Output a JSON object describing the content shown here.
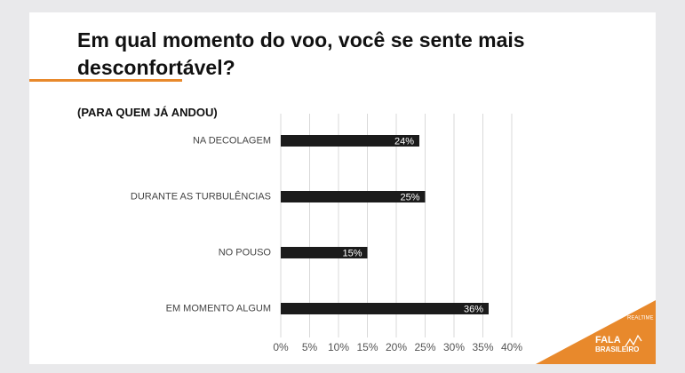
{
  "chart_data": {
    "type": "hbar",
    "title": "Em qual momento do voo, você se sente mais desconfortável?",
    "subtitle": "(PARA QUEM JÁ ANDOU)",
    "categories": [
      "NA DECOLAGEM",
      "DURANTE AS TURBULÊNCIAS",
      "NO POUSO",
      "EM MOMENTO ALGUM"
    ],
    "values": [
      24,
      25,
      15,
      36
    ],
    "value_labels": [
      "24%",
      "25%",
      "15%",
      "36%"
    ],
    "color": "#1b1b1b",
    "xlim": [
      0,
      40
    ],
    "xticks": [
      {
        "value": 0,
        "label": "0%"
      },
      {
        "value": 5,
        "label": "5%"
      },
      {
        "value": 10,
        "label": "10%"
      },
      {
        "value": 15,
        "label": "15%"
      },
      {
        "value": 20,
        "label": "20%"
      },
      {
        "value": 25,
        "label": "25%"
      },
      {
        "value": 30,
        "label": "30%"
      },
      {
        "value": 35,
        "label": "35%"
      },
      {
        "value": 40,
        "label": "40%"
      }
    ],
    "grid": true
  },
  "logo": {
    "tag": "REALTIME",
    "name": "FALA",
    "sub": "BRASILEIRO"
  }
}
